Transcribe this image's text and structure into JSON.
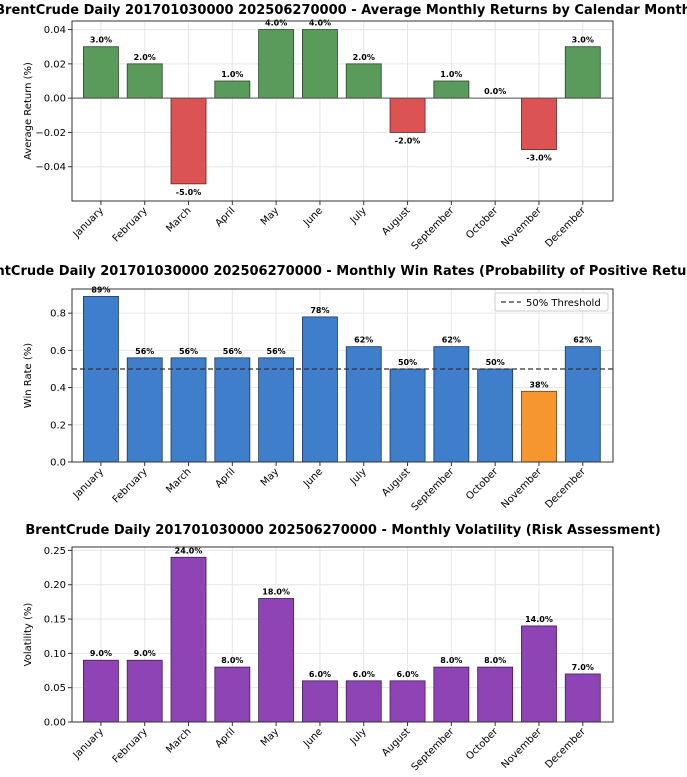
{
  "chart_data": [
    {
      "type": "bar",
      "title": "BrentCrude Daily 201701030000 202506270000 - Average Monthly Returns by Calendar Month",
      "xlabel": "",
      "ylabel": "Average Return (%)",
      "categories": [
        "January",
        "February",
        "March",
        "April",
        "May",
        "June",
        "July",
        "August",
        "September",
        "October",
        "November",
        "December"
      ],
      "values": [
        0.03,
        0.02,
        -0.05,
        0.01,
        0.04,
        0.04,
        0.02,
        -0.02,
        0.01,
        0.0,
        -0.03,
        0.03
      ],
      "data_labels": [
        "3.0%",
        "2.0%",
        "-5.0%",
        "1.0%",
        "4.0%",
        "4.0%",
        "2.0%",
        "-2.0%",
        "1.0%",
        "0.0%",
        "-3.0%",
        "3.0%"
      ],
      "bar_colors": [
        "#5a9a5a",
        "#5a9a5a",
        "#dc5353",
        "#5a9a5a",
        "#5a9a5a",
        "#5a9a5a",
        "#5a9a5a",
        "#dc5353",
        "#5a9a5a",
        "#5a9a5a",
        "#dc5353",
        "#5a9a5a"
      ],
      "ylim": [
        -0.06,
        0.045
      ],
      "yticks": [
        0.04,
        0.02,
        0.0,
        -0.02,
        -0.04
      ],
      "ytick_labels": [
        "0.04",
        "0.02",
        "0.00",
        "−0.02",
        "−0.04"
      ],
      "grid": true,
      "zero_line": true
    },
    {
      "type": "bar",
      "title": "BrentCrude Daily 201701030000 202506270000 - Monthly Win Rates (Probability of Positive Returns)",
      "xlabel": "",
      "ylabel": "Win Rate (%)",
      "categories": [
        "January",
        "February",
        "March",
        "April",
        "May",
        "June",
        "July",
        "August",
        "September",
        "October",
        "November",
        "December"
      ],
      "values": [
        0.89,
        0.56,
        0.56,
        0.56,
        0.56,
        0.78,
        0.62,
        0.5,
        0.62,
        0.5,
        0.38,
        0.62
      ],
      "data_labels": [
        "89%",
        "56%",
        "56%",
        "56%",
        "56%",
        "78%",
        "62%",
        "50%",
        "62%",
        "50%",
        "38%",
        "62%"
      ],
      "bar_colors": [
        "#3e7ecb",
        "#3e7ecb",
        "#3e7ecb",
        "#3e7ecb",
        "#3e7ecb",
        "#3e7ecb",
        "#3e7ecb",
        "#3e7ecb",
        "#3e7ecb",
        "#3e7ecb",
        "#f5962f",
        "#3e7ecb"
      ],
      "ylim": [
        0,
        0.93
      ],
      "yticks": [
        0.0,
        0.2,
        0.4,
        0.6,
        0.8
      ],
      "ytick_labels": [
        "0.0",
        "0.2",
        "0.4",
        "0.6",
        "0.8"
      ],
      "threshold": 0.5,
      "legend": [
        {
          "label": "50% Threshold",
          "style": "dashed"
        }
      ],
      "legend_position": "top-right",
      "grid": true
    },
    {
      "type": "bar",
      "title": "BrentCrude Daily 201701030000 202506270000 - Monthly Volatility (Risk Assessment)",
      "xlabel": "",
      "ylabel": "Volatility (%)",
      "categories": [
        "January",
        "February",
        "March",
        "April",
        "May",
        "June",
        "July",
        "August",
        "September",
        "October",
        "November",
        "December"
      ],
      "values": [
        0.09,
        0.09,
        0.24,
        0.08,
        0.18,
        0.06,
        0.06,
        0.06,
        0.08,
        0.08,
        0.14,
        0.07
      ],
      "data_labels": [
        "9.0%",
        "9.0%",
        "24.0%",
        "8.0%",
        "18.0%",
        "6.0%",
        "6.0%",
        "6.0%",
        "8.0%",
        "8.0%",
        "14.0%",
        "7.0%"
      ],
      "bar_colors": [
        "#8e44b5",
        "#8e44b5",
        "#8e44b5",
        "#8e44b5",
        "#8e44b5",
        "#8e44b5",
        "#8e44b5",
        "#8e44b5",
        "#8e44b5",
        "#8e44b5",
        "#8e44b5",
        "#8e44b5"
      ],
      "ylim": [
        0,
        0.255
      ],
      "yticks": [
        0.0,
        0.05,
        0.1,
        0.15,
        0.2,
        0.25
      ],
      "ytick_labels": [
        "0.00",
        "0.05",
        "0.10",
        "0.15",
        "0.20",
        "0.25"
      ],
      "grid": true
    }
  ]
}
